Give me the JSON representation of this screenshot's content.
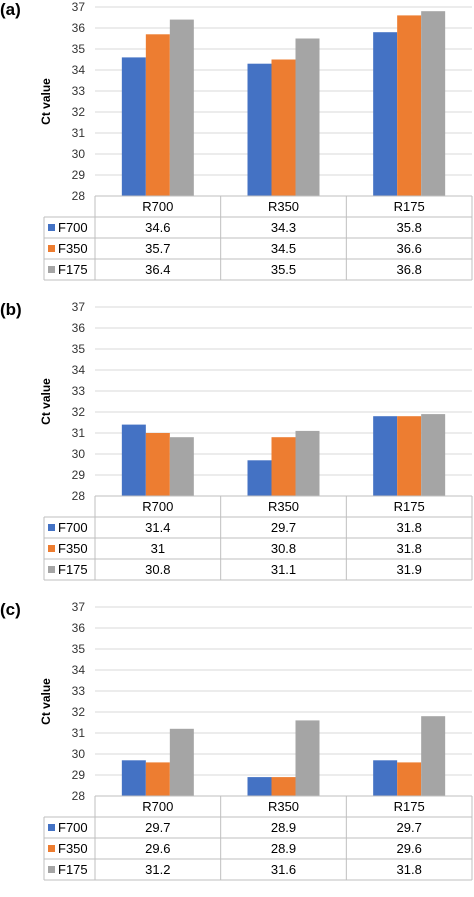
{
  "colors": {
    "F700": "#4472C4",
    "F350": "#ED7D31",
    "F175": "#A5A5A5",
    "grid": "#D9D9D9",
    "table": "#BFBFBF"
  },
  "chart_data": [
    {
      "panel": "(a)",
      "type": "bar",
      "ylabel": "Ct value",
      "ylim": [
        28,
        37
      ],
      "yticks": [
        28,
        29,
        30,
        31,
        32,
        33,
        34,
        35,
        36,
        37
      ],
      "categories": [
        "R700",
        "R350",
        "R175"
      ],
      "series": [
        {
          "name": "F700",
          "values": [
            34.6,
            34.3,
            35.8
          ]
        },
        {
          "name": "F350",
          "values": [
            35.7,
            34.5,
            36.6
          ]
        },
        {
          "name": "F175",
          "values": [
            36.4,
            35.5,
            36.8
          ]
        }
      ],
      "data_table": [
        [
          "34.6",
          "34.3",
          "35.8"
        ],
        [
          "35.7",
          "34.5",
          "36.6"
        ],
        [
          "36.4",
          "35.5",
          "36.8"
        ]
      ]
    },
    {
      "panel": "(b)",
      "type": "bar",
      "ylabel": "Ct value",
      "ylim": [
        28,
        37
      ],
      "yticks": [
        28,
        29,
        30,
        31,
        32,
        33,
        34,
        35,
        36,
        37
      ],
      "categories": [
        "R700",
        "R350",
        "R175"
      ],
      "series": [
        {
          "name": "F700",
          "values": [
            31.4,
            29.7,
            31.8
          ]
        },
        {
          "name": "F350",
          "values": [
            31.0,
            30.8,
            31.8
          ]
        },
        {
          "name": "F175",
          "values": [
            30.8,
            31.1,
            31.9
          ]
        }
      ],
      "data_table": [
        [
          "31.4",
          "29.7",
          "31.8"
        ],
        [
          "31",
          "30.8",
          "31.8"
        ],
        [
          "30.8",
          "31.1",
          "31.9"
        ]
      ]
    },
    {
      "panel": "(c)",
      "type": "bar",
      "ylabel": "Ct value",
      "ylim": [
        28,
        37
      ],
      "yticks": [
        28,
        29,
        30,
        31,
        32,
        33,
        34,
        35,
        36,
        37
      ],
      "categories": [
        "R700",
        "R350",
        "R175"
      ],
      "series": [
        {
          "name": "F700",
          "values": [
            29.7,
            28.9,
            29.7
          ]
        },
        {
          "name": "F350",
          "values": [
            29.6,
            28.9,
            29.6
          ]
        },
        {
          "name": "F175",
          "values": [
            31.2,
            31.6,
            31.8
          ]
        }
      ],
      "data_table": [
        [
          "29.7",
          "28.9",
          "29.7"
        ],
        [
          "29.6",
          "28.9",
          "29.6"
        ],
        [
          "31.2",
          "31.6",
          "31.8"
        ]
      ]
    }
  ]
}
